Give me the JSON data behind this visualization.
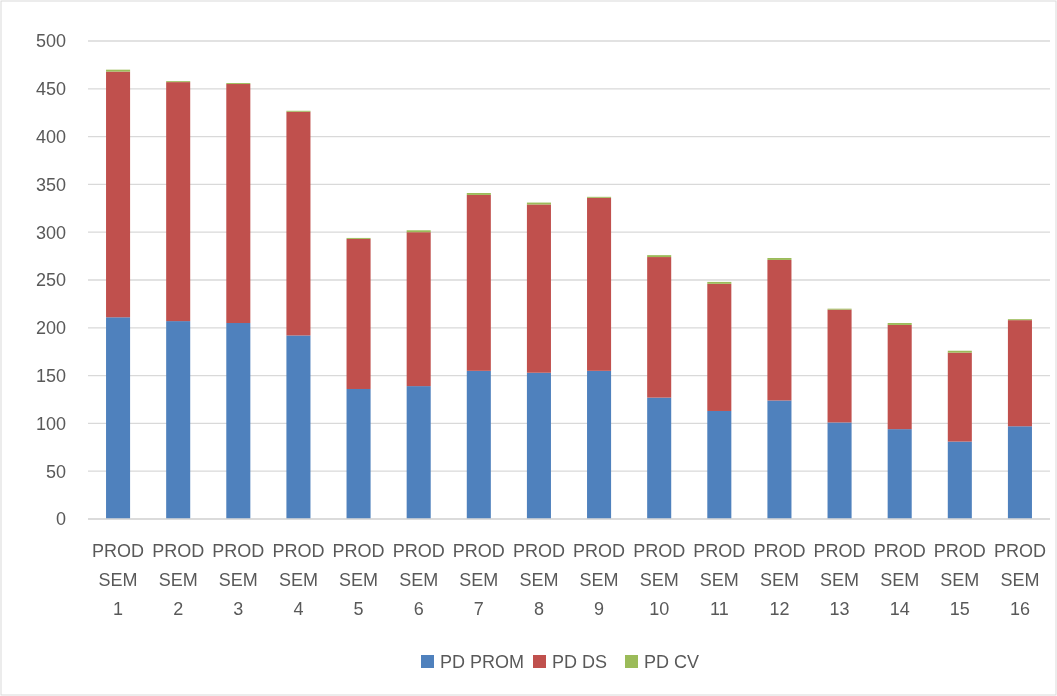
{
  "chart_data": {
    "type": "bar",
    "stacked": true,
    "categories": [
      "PROD SEM 1",
      "PROD SEM 2",
      "PROD SEM 3",
      "PROD SEM 4",
      "PROD SEM 5",
      "PROD SEM 6",
      "PROD SEM 7",
      "PROD SEM 8",
      "PROD SEM 9",
      "PROD SEM 10",
      "PROD SEM 11",
      "PROD SEM 12",
      "PROD SEM 13",
      "PROD SEM 14",
      "PROD SEM 15",
      "PROD SEM 16"
    ],
    "series": [
      {
        "name": "PD PROM",
        "color": "#4f81bd",
        "values": [
          211,
          207,
          205,
          192,
          136,
          139,
          155,
          153,
          155,
          127,
          113,
          124,
          101,
          94,
          81,
          97
        ]
      },
      {
        "name": "PD DS",
        "color": "#c0504d",
        "values": [
          257,
          250,
          250,
          234,
          157,
          161,
          184,
          176,
          181,
          147,
          133,
          147,
          118,
          109,
          93,
          111
        ]
      },
      {
        "name": "PD CV",
        "color": "#9bbb59",
        "values": [
          2,
          1,
          1,
          1,
          1,
          2,
          2,
          2,
          1,
          2,
          2,
          2,
          1,
          2,
          2,
          1
        ]
      }
    ],
    "ylim": [
      0,
      500
    ],
    "yticks": [
      0,
      50,
      100,
      150,
      200,
      250,
      300,
      350,
      400,
      450,
      500
    ],
    "grid": "y",
    "legend": "bottom"
  }
}
